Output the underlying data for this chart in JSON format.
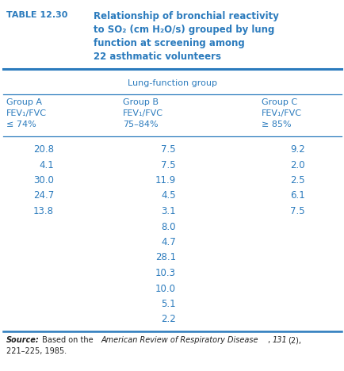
{
  "table_label": "TABLE 12.30",
  "title_lines": [
    "Relationship of bronchial reactivity",
    "to SO₂ (cm H₂O/s) grouped by lung",
    "function at screening among",
    "22 asthmatic volunteers"
  ],
  "spanning_header": "Lung-function group",
  "col_headers": [
    [
      "Group A",
      "FEV₁/FVC",
      "≤ 74%"
    ],
    [
      "Group B",
      "FEV₁/FVC",
      "75–84%"
    ],
    [
      "Group C",
      "FEV₁/FVC",
      "≥ 85%"
    ]
  ],
  "col_A": [
    "20.8",
    "4.1",
    "30.0",
    "24.7",
    "13.8"
  ],
  "col_B": [
    "7.5",
    "7.5",
    "11.9",
    "4.5",
    "3.1",
    "8.0",
    "4.7",
    "28.1",
    "10.3",
    "10.0",
    "5.1",
    "2.2"
  ],
  "col_C": [
    "9.2",
    "2.0",
    "2.5",
    "6.1",
    "7.5"
  ],
  "blue": "#2B7BBD",
  "black": "#222222",
  "bg": "#ffffff",
  "fig_w": 4.35,
  "fig_h": 4.68,
  "dpi": 100
}
